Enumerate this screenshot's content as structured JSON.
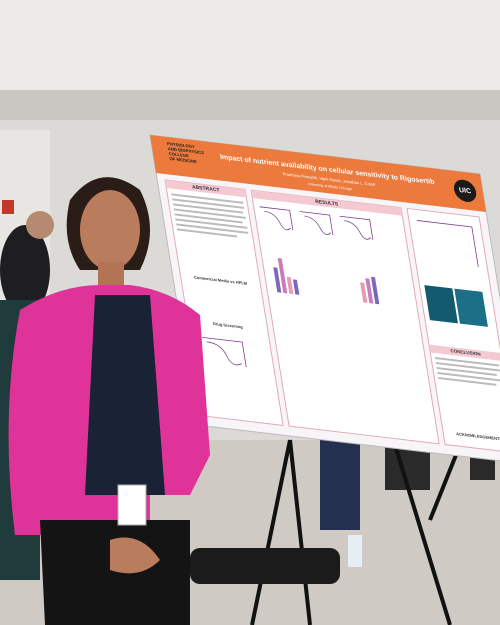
{
  "poster": {
    "department": [
      "PHYSIOLOGY",
      "AND BIOPHYSICS",
      "COLLEGE",
      "OF MEDICINE"
    ],
    "title": "Impact of nutrient availability on cellular sensitivity to Rigosertib",
    "authors": "Prarthana Prasanth, Vipin Rawat, Jonathan L. Coloff",
    "affiliation": "University of Illinois Chicago",
    "logo": "UIC",
    "sections": [
      "ABSTRACT",
      "RESULTS",
      "Commercial Media vs HPLM",
      "Drug Screening",
      "CONCLUSION",
      "ACKNOWLEDGEMENTS"
    ]
  }
}
